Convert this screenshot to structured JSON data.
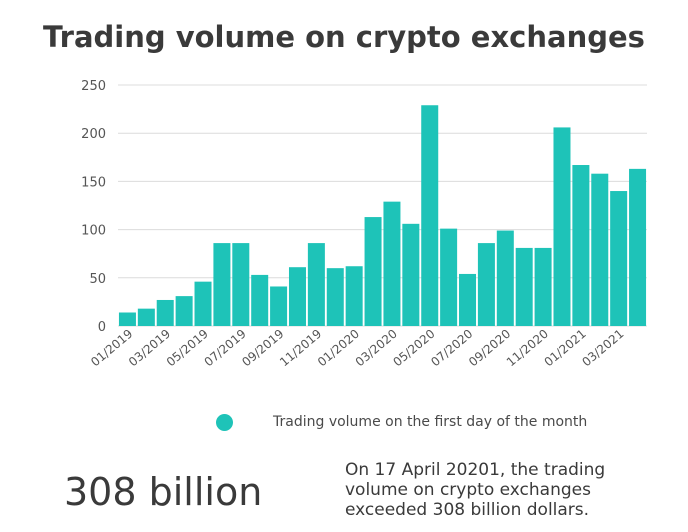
{
  "chart_data": {
    "type": "bar",
    "title": "Trading volume on crypto exchanges",
    "xlabel": "",
    "ylabel": "",
    "ylim": [
      0,
      250
    ],
    "yticks": [
      0,
      50,
      100,
      150,
      200,
      250
    ],
    "grid": true,
    "legend_position": "bottom",
    "categories": [
      "01/2019",
      "02/2019",
      "03/2019",
      "04/2019",
      "05/2019",
      "06/2019",
      "07/2019",
      "08/2019",
      "09/2019",
      "10/2019",
      "11/2019",
      "12/2019",
      "01/2020",
      "02/2020",
      "03/2020",
      "04/2020",
      "05/2020",
      "06/2020",
      "07/2020",
      "08/2020",
      "09/2020",
      "10/2020",
      "11/2020",
      "12/2020",
      "01/2021",
      "02/2021",
      "03/2021",
      "04/2021"
    ],
    "tick_labels": [
      "01/2019",
      "",
      "03/2019",
      "",
      "05/2019",
      "",
      "07/2019",
      "",
      "09/2019",
      "",
      "11/2019",
      "",
      "01/2020",
      "",
      "03/2020",
      "",
      "05/2020",
      "",
      "07/2020",
      "",
      "09/2020",
      "",
      "11/2020",
      "",
      "01/2021",
      "",
      "03/2021",
      ""
    ],
    "series": [
      {
        "name": "Trading volume on the first day of the month",
        "color": "#1ec3b8",
        "values": [
          14,
          18,
          27,
          31,
          46,
          86,
          86,
          53,
          41,
          61,
          86,
          60,
          62,
          113,
          129,
          106,
          229,
          101,
          54,
          86,
          99,
          81,
          81,
          206,
          167,
          158,
          140,
          163
        ]
      }
    ]
  },
  "highlight": {
    "value": "308 billion",
    "text": "On 17 April 20201, the trading volume on crypto exchanges exceeded 308 billion dollars."
  }
}
